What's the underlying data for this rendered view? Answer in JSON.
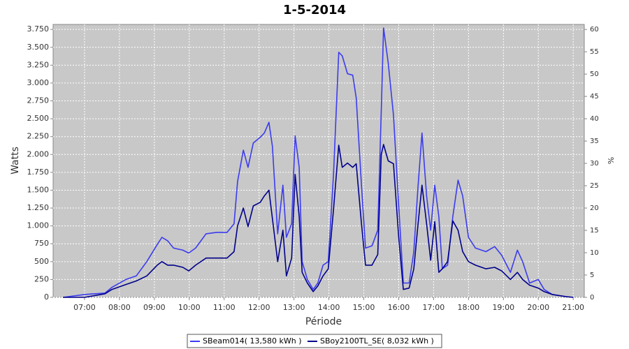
{
  "chart_data": {
    "type": "line",
    "title": "1-5-2014",
    "xlabel": "Période",
    "ylabel": "Watts",
    "y2label": "%",
    "x": [
      "06:23",
      "07:00",
      "07:35",
      "07:47",
      "08:11",
      "08:29",
      "08:47",
      "09:05",
      "09:13",
      "09:23",
      "09:33",
      "09:49",
      "09:59",
      "10:11",
      "10:29",
      "10:47",
      "11:05",
      "11:17",
      "11:23",
      "11:33",
      "11:41",
      "11:50",
      "12:02",
      "12:09",
      "12:17",
      "12:23",
      "12:32",
      "12:41",
      "12:47",
      "12:56",
      "13:02",
      "13:09",
      "13:14",
      "13:23",
      "13:33",
      "13:41",
      "13:50",
      "13:59",
      "14:08",
      "14:17",
      "14:23",
      "14:32",
      "14:41",
      "14:47",
      "14:56",
      "15:03",
      "15:14",
      "15:24",
      "15:30",
      "15:34",
      "15:42",
      "15:51",
      "16:00",
      "16:08",
      "16:18",
      "16:26",
      "16:33",
      "16:40",
      "16:48",
      "16:55",
      "17:02",
      "17:09",
      "17:15",
      "17:24",
      "17:33",
      "17:42",
      "17:50",
      "18:00",
      "18:12",
      "18:30",
      "18:45",
      "18:57",
      "19:12",
      "19:24",
      "19:33",
      "19:45",
      "20:00",
      "20:10",
      "20:24",
      "20:48",
      "21:00"
    ],
    "series": [
      {
        "name": "SBeam014( 13,580 kWh )",
        "color": "#3b3bf0",
        "values": [
          0,
          40,
          60,
          140,
          250,
          300,
          500,
          740,
          840,
          790,
          690,
          660,
          620,
          690,
          890,
          910,
          910,
          1030,
          1620,
          2060,
          1820,
          2160,
          2240,
          2300,
          2450,
          2110,
          890,
          1570,
          840,
          1030,
          2260,
          1820,
          500,
          250,
          110,
          200,
          450,
          500,
          1720,
          3430,
          3380,
          3130,
          3110,
          2790,
          1570,
          690,
          720,
          940,
          2600,
          3770,
          3280,
          2550,
          1280,
          200,
          200,
          640,
          1520,
          2300,
          1420,
          940,
          1570,
          1130,
          400,
          450,
          1130,
          1640,
          1420,
          840,
          690,
          640,
          710,
          590,
          350,
          660,
          500,
          200,
          250,
          110,
          40,
          10,
          0
        ]
      },
      {
        "name": "SBoy2100TL_SE( 8,032 kWh )",
        "color": "#00008b",
        "values": [
          0,
          0,
          50,
          110,
          180,
          230,
          300,
          450,
          500,
          450,
          450,
          420,
          370,
          450,
          550,
          550,
          550,
          640,
          1000,
          1250,
          990,
          1280,
          1330,
          1420,
          1500,
          1100,
          500,
          940,
          300,
          550,
          1720,
          1130,
          350,
          200,
          80,
          160,
          300,
          400,
          1230,
          2130,
          1820,
          1880,
          1820,
          1870,
          1030,
          450,
          450,
          600,
          2000,
          2140,
          1910,
          1870,
          840,
          110,
          130,
          400,
          1000,
          1570,
          1030,
          520,
          1060,
          350,
          400,
          500,
          1070,
          940,
          640,
          500,
          450,
          400,
          420,
          370,
          250,
          350,
          250,
          170,
          130,
          80,
          40,
          10,
          0
        ]
      }
    ],
    "xlim": [
      "06:06",
      "21:19"
    ],
    "xticks": [
      "07:00",
      "08:00",
      "09:00",
      "10:00",
      "11:00",
      "12:00",
      "13:00",
      "14:00",
      "15:00",
      "16:00",
      "17:00",
      "18:00",
      "19:00",
      "20:00",
      "21:00"
    ],
    "ylim": [
      0,
      3820
    ],
    "yticks": [
      0,
      {
        "value": 250,
        "label": "250"
      },
      500,
      750,
      {
        "value": 1000,
        "label": "1.000"
      },
      {
        "value": 1250,
        "label": "1.250"
      },
      {
        "value": 1500,
        "label": "1.500"
      },
      {
        "value": 1750,
        "label": "1.750"
      },
      {
        "value": 2000,
        "label": "2.000"
      },
      {
        "value": 2250,
        "label": "2.250"
      },
      {
        "value": 2500,
        "label": "2.500"
      },
      {
        "value": 2750,
        "label": "2.750"
      },
      {
        "value": 3000,
        "label": "3.000"
      },
      {
        "value": 3250,
        "label": "3.250"
      },
      {
        "value": 3500,
        "label": "3.500"
      },
      {
        "value": 3750,
        "label": "3.750"
      }
    ],
    "y2lim": [
      0,
      61.12
    ],
    "y2ticks": [
      0,
      5,
      10,
      15,
      20,
      25,
      30,
      35,
      40,
      45,
      50,
      55,
      60
    ],
    "grid": true,
    "legend": "bottom"
  }
}
